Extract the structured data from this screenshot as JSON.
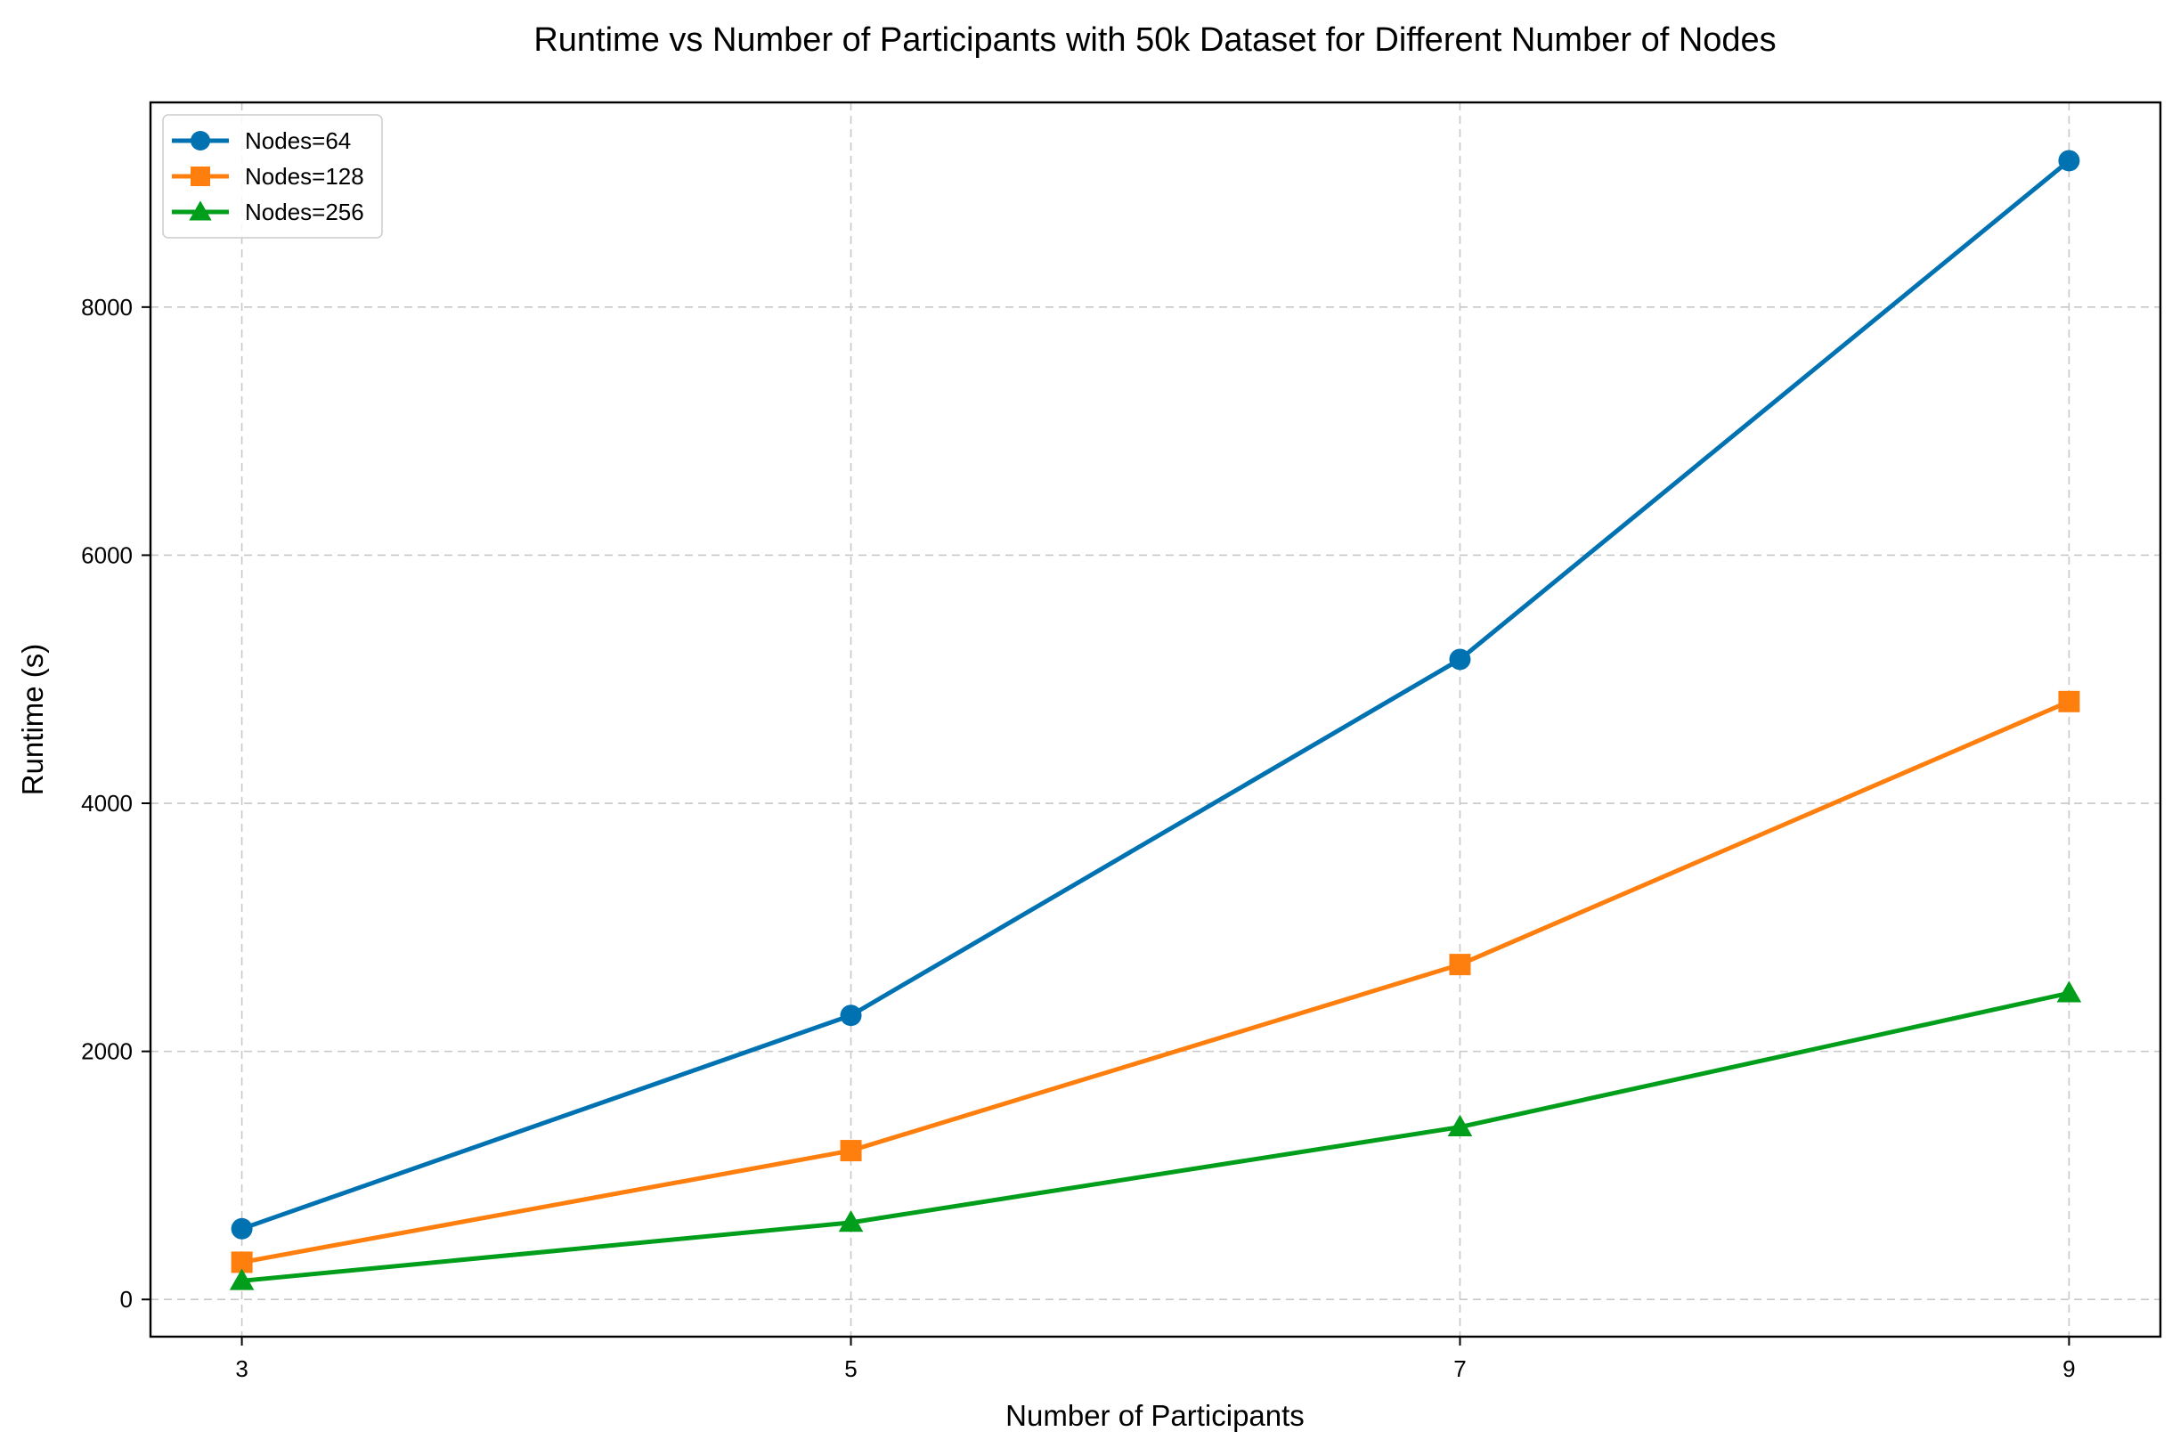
{
  "chart_data": {
    "type": "line",
    "title": "Runtime vs Number of Participants with 50k Dataset for Different Number of Nodes",
    "xlabel": "Number of Participants",
    "ylabel": "Runtime (s)",
    "x": [
      3,
      5,
      7,
      9
    ],
    "xticks": [
      "3",
      "5",
      "7",
      "9"
    ],
    "yticks": [
      "0",
      "2000",
      "4000",
      "6000",
      "8000"
    ],
    "xlim": [
      2.7,
      9.3
    ],
    "ylim": [
      -300,
      9650
    ],
    "grid": true,
    "legend_position": "top-left",
    "series": [
      {
        "name": "Nodes=64",
        "values": [
          570,
          2290,
          5160,
          9180
        ],
        "color": "#0072b2",
        "marker": "circle"
      },
      {
        "name": "Nodes=128",
        "values": [
          300,
          1200,
          2700,
          4820
        ],
        "color": "#ff7f0e",
        "marker": "square"
      },
      {
        "name": "Nodes=256",
        "values": [
          150,
          620,
          1390,
          2470
        ],
        "color": "#009e1a",
        "marker": "triangle"
      }
    ]
  }
}
